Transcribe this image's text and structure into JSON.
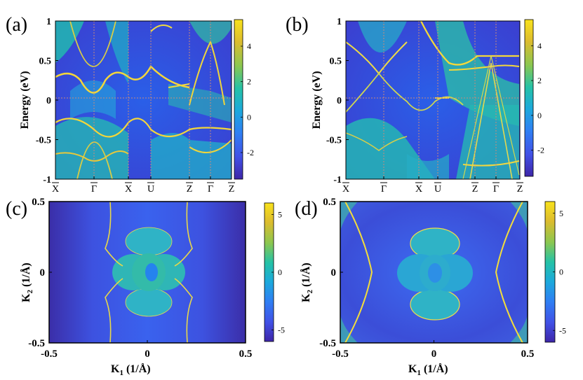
{
  "colormap": [
    "#3e26a8",
    "#4151e6",
    "#2f7ff3",
    "#1ca9dc",
    "#25c2a6",
    "#8bc750",
    "#dcbc2e",
    "#f9e21c"
  ],
  "chart_data": [
    {
      "type": "heatmap",
      "panel": "(a)",
      "ylabel": "Energy (eV)",
      "ylim": [
        -1,
        1
      ],
      "yticks": [
        "1",
        "0.5",
        "0",
        "-0.5",
        "-1"
      ],
      "xticks": [
        "X",
        "Γ",
        "X",
        "U",
        "Z",
        "Γ",
        "Z"
      ],
      "colorbar": {
        "range": [
          -3.5,
          5.5
        ],
        "ticks": [
          "4",
          "2",
          "0",
          "-2"
        ]
      }
    },
    {
      "type": "heatmap",
      "panel": "(b)",
      "ylabel": "Energy (eV)",
      "ylim": [
        -1,
        1
      ],
      "yticks": [
        "1",
        "0.5",
        "0",
        "-0.5",
        "-1"
      ],
      "xticks": [
        "X",
        "Γ",
        "X",
        "U",
        "Z",
        "Γ",
        "Z"
      ],
      "colorbar": {
        "range": [
          -3.5,
          5.5
        ],
        "ticks": [
          "4",
          "2",
          "0",
          "-2"
        ]
      }
    },
    {
      "type": "heatmap",
      "panel": "(c)",
      "xlabel": "K",
      "xlabel_sub": "1",
      "xlabel_unit": " (1/Å)",
      "ylabel": "K",
      "ylabel_sub": "2",
      "ylabel_unit": " (1/Å)",
      "xlim": [
        -0.5,
        0.5
      ],
      "ylim": [
        -0.5,
        0.5
      ],
      "xticks": [
        "-0.5",
        "0",
        "0.5"
      ],
      "yticks": [
        "0.5",
        "0",
        "-0.5"
      ],
      "colorbar": {
        "range": [
          -6,
          6
        ],
        "ticks": [
          "5",
          "0",
          "-5"
        ]
      }
    },
    {
      "type": "heatmap",
      "panel": "(d)",
      "xlabel": "K",
      "xlabel_sub": "1",
      "xlabel_unit": " (1/Å)",
      "ylabel": "K",
      "ylabel_sub": "2",
      "ylabel_unit": " (1/Å)",
      "xlim": [
        -0.5,
        0.5
      ],
      "ylim": [
        -0.5,
        0.5
      ],
      "xticks": [
        "-0.5",
        "0",
        "0.5"
      ],
      "yticks": [
        "0.5",
        "0",
        "-0.5"
      ],
      "colorbar": {
        "range": [
          -6,
          6
        ],
        "ticks": [
          "5",
          "0",
          "-5"
        ]
      }
    }
  ]
}
